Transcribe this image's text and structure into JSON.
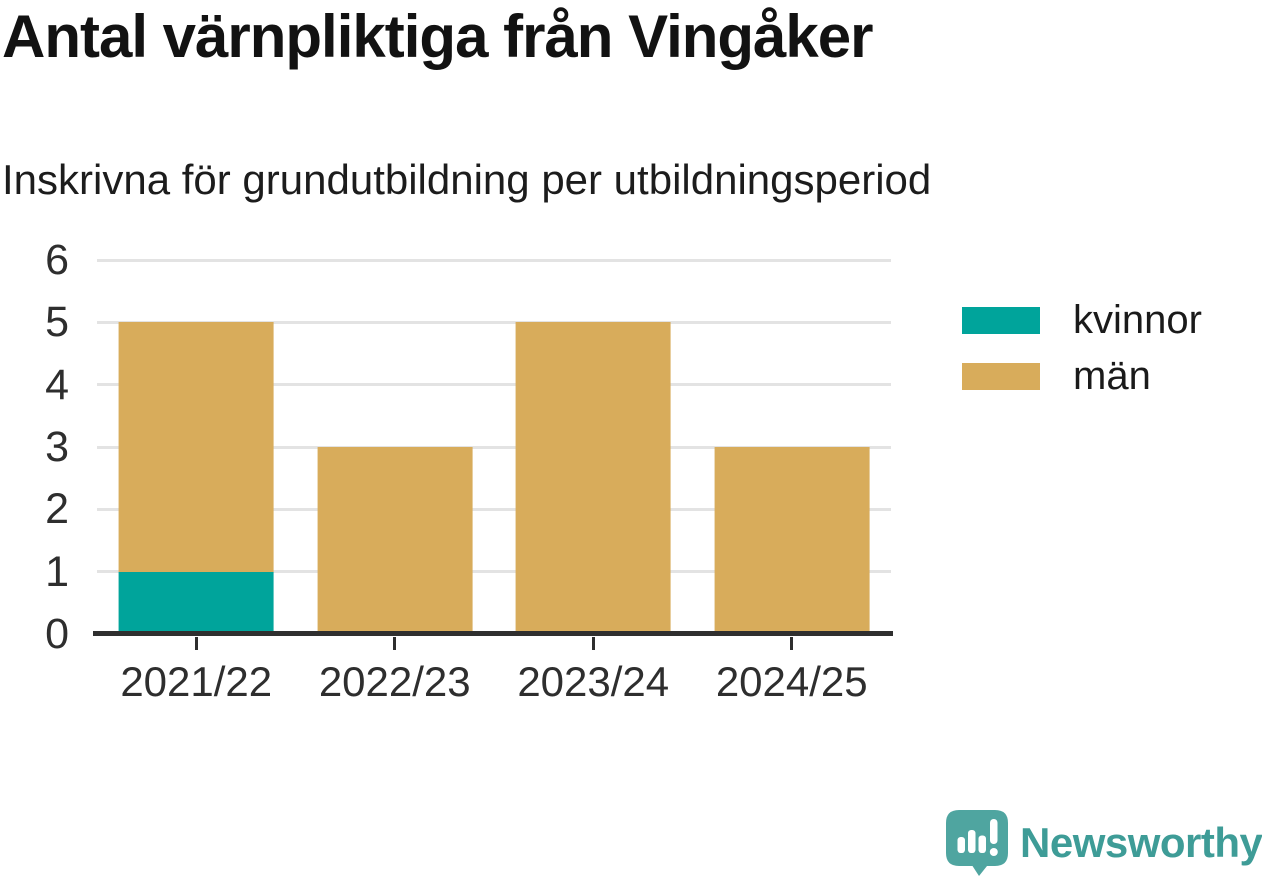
{
  "chart_data": {
    "type": "bar",
    "stacked": true,
    "title": "Antal värnpliktiga från Vingåker",
    "subtitle": "Inskrivna för grundutbildning per utbildningsperiod",
    "categories": [
      "2021/22",
      "2022/23",
      "2023/24",
      "2024/25"
    ],
    "series": [
      {
        "name": "kvinnor",
        "color": "#00a49b",
        "values": [
          1,
          0,
          0,
          0
        ]
      },
      {
        "name": "män",
        "color": "#d8ac5b",
        "values": [
          4,
          3,
          5,
          3
        ]
      }
    ],
    "totals": [
      5,
      3,
      5,
      3
    ],
    "xlabel": "",
    "ylabel": "",
    "ylim": [
      0,
      6
    ],
    "yticks": [
      0,
      1,
      2,
      3,
      4,
      5,
      6
    ],
    "grid": "horizontal-on",
    "legend_position": "right",
    "axis_color": "#2f2f2f",
    "gridline_color": "#e3e3e3"
  },
  "footer": {
    "brand": "Newsworthy",
    "brand_color": "#3e9c97",
    "icon": "newsworthy-speech-bubble-bar-chart-icon",
    "icon_color": "#4fa5a0"
  }
}
